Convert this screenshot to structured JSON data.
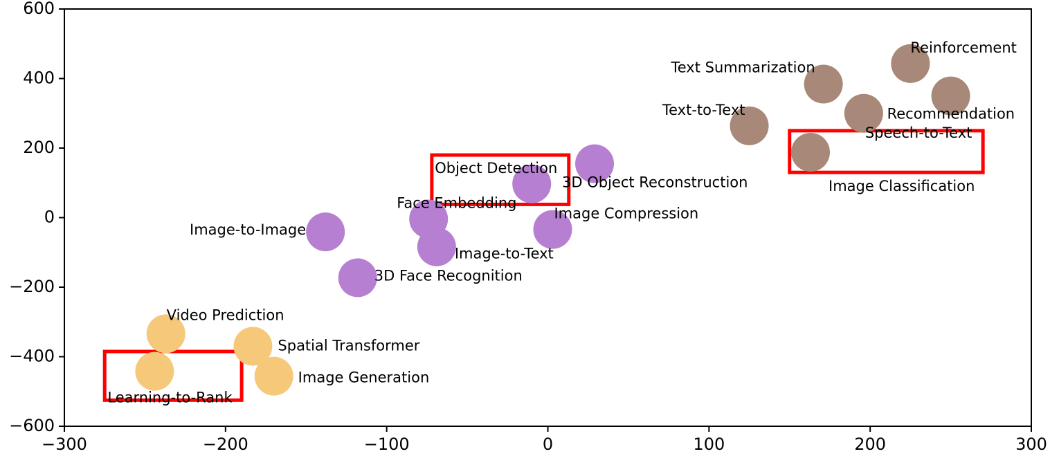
{
  "chart_data": {
    "type": "scatter",
    "title": "",
    "xlabel": "",
    "ylabel": "",
    "xlim": [
      -300,
      300
    ],
    "ylim": [
      -600,
      600
    ],
    "x_ticks": [
      -300,
      -200,
      -100,
      0,
      100,
      200,
      300
    ],
    "y_ticks": [
      -600,
      -400,
      -200,
      0,
      200,
      400,
      600
    ],
    "x_tick_labels": [
      "−300",
      "−200",
      "−100",
      "0",
      "100",
      "200",
      "300"
    ],
    "y_tick_labels": [
      "−600",
      "−400",
      "−200",
      "0",
      "200",
      "400",
      "600"
    ],
    "grid": false,
    "colors": {
      "brown": "#a88878",
      "purple": "#b77fd2",
      "orange": "#f6c87a",
      "highlight": "#ff0000"
    },
    "points": [
      {
        "label": "Reinforcement",
        "x": 225,
        "y": 443,
        "color": "brown"
      },
      {
        "label": "Text Summarization",
        "x": 171,
        "y": 384,
        "color": "brown"
      },
      {
        "label": "Recommendation",
        "x": 250,
        "y": 350,
        "color": "brown"
      },
      {
        "label": "Speech-to-Text",
        "x": 196,
        "y": 300,
        "color": "brown"
      },
      {
        "label": "Text-to-Text",
        "x": 125,
        "y": 264,
        "color": "brown"
      },
      {
        "label": "Image Classification",
        "x": 163,
        "y": 188,
        "color": "brown"
      },
      {
        "label": "3D Object Reconstruction",
        "x": 29,
        "y": 155,
        "color": "purple"
      },
      {
        "label": "Object Detection",
        "x": -10,
        "y": 97,
        "color": "purple"
      },
      {
        "label": "Image Compression",
        "x": 3,
        "y": -34,
        "color": "purple"
      },
      {
        "label": "Face Embedding",
        "x": -74,
        "y": -4,
        "color": "purple"
      },
      {
        "label": "Image-to-Image",
        "x": -138,
        "y": -41,
        "color": "purple"
      },
      {
        "label": "Image-to-Text",
        "x": -69,
        "y": -84,
        "color": "purple"
      },
      {
        "label": "3D Face Recognition",
        "x": -118,
        "y": -173,
        "color": "purple"
      },
      {
        "label": "Video Prediction",
        "x": -237,
        "y": -334,
        "color": "orange"
      },
      {
        "label": "Spatial Transformer",
        "x": -183,
        "y": -370,
        "color": "orange"
      },
      {
        "label": "Learning-to-Rank",
        "x": -244,
        "y": -442,
        "color": "orange"
      },
      {
        "label": "Image Generation",
        "x": -170,
        "y": -456,
        "color": "orange"
      }
    ],
    "highlights": [
      {
        "target": "Object Detection",
        "x0": -72,
        "x1": 13,
        "y0": 38,
        "y1": 180
      },
      {
        "target": "Image Classification",
        "x0": 150,
        "x1": 270,
        "y0": 130,
        "y1": 250
      },
      {
        "target": "Learning-to-Rank",
        "x0": -275,
        "x1": -190,
        "y0": -525,
        "y1": -385
      }
    ]
  }
}
